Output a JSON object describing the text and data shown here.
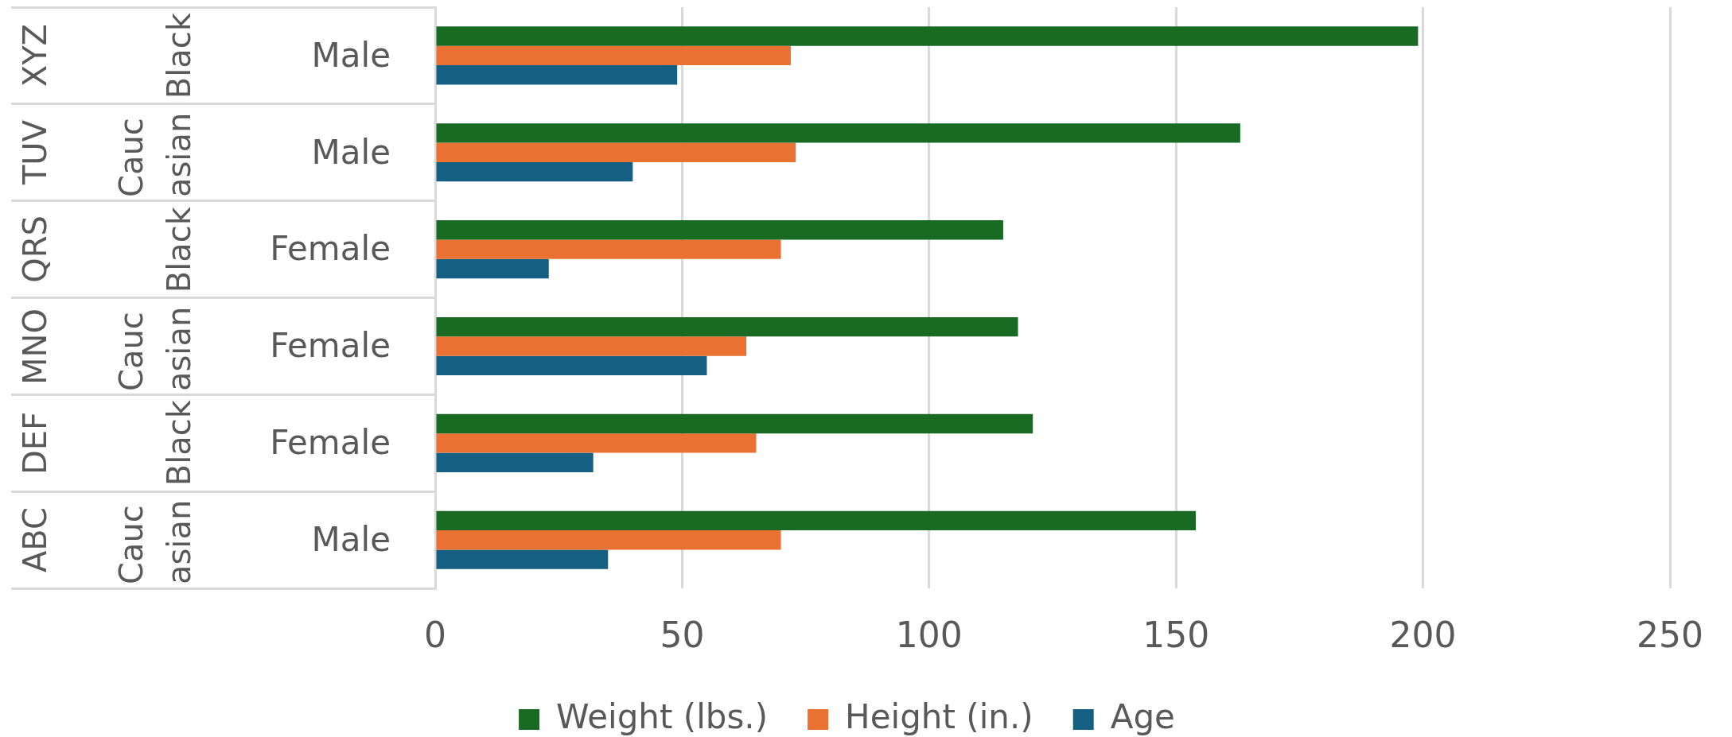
{
  "chart_data": {
    "type": "bar",
    "orientation": "horizontal",
    "categories": [
      [
        "XYZ",
        "Black",
        "Male"
      ],
      [
        "TUV",
        "Caucasian",
        "Male"
      ],
      [
        "QRS",
        "Black",
        "Female"
      ],
      [
        "MNO",
        "Caucasian",
        "Female"
      ],
      [
        "DEF",
        "Black",
        "Female"
      ],
      [
        "ABC",
        "Caucasian",
        "Male"
      ]
    ],
    "series": [
      {
        "name": "Weight (lbs.)",
        "color": "#196b24",
        "values": [
          199,
          163,
          115,
          118,
          121,
          154
        ]
      },
      {
        "name": "Height (in.)",
        "color": "#e97132",
        "values": [
          72,
          73,
          70,
          63,
          65,
          70
        ]
      },
      {
        "name": "Age",
        "color": "#156082",
        "values": [
          49,
          40,
          23,
          55,
          32,
          35
        ]
      }
    ],
    "xlim": [
      0,
      250
    ],
    "xticks": [
      0,
      50,
      100,
      150,
      200,
      250
    ],
    "grid": "x",
    "legend": "bottom"
  }
}
